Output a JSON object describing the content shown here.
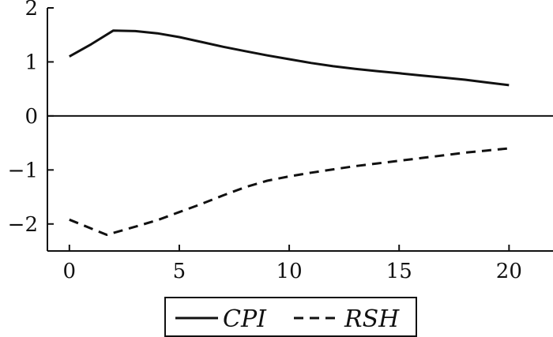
{
  "chart_data": {
    "type": "line",
    "title": "",
    "xlabel": "",
    "ylabel": "",
    "xlim": [
      -1,
      22
    ],
    "ylim": [
      -2.5,
      2
    ],
    "x_ticks": [
      0,
      5,
      10,
      15,
      20
    ],
    "y_ticks": [
      2,
      1,
      0,
      -1,
      -2
    ],
    "x_tick_labels": [
      "0",
      "5",
      "10",
      "15",
      "20"
    ],
    "y_tick_labels": [
      "2",
      "1",
      "0",
      "−1",
      "−2"
    ],
    "grid": false,
    "zero_line": true,
    "legend_position": "bottom-center",
    "series": [
      {
        "name": "CPI",
        "line_style": "solid",
        "color": "#111111",
        "x": [
          0,
          1,
          2,
          3,
          4,
          5,
          6,
          7,
          8,
          9,
          10,
          11,
          12,
          13,
          14,
          15,
          16,
          17,
          18,
          19,
          20
        ],
        "y": [
          1.1,
          1.33,
          1.58,
          1.57,
          1.53,
          1.46,
          1.37,
          1.28,
          1.2,
          1.12,
          1.05,
          0.98,
          0.92,
          0.87,
          0.83,
          0.79,
          0.75,
          0.71,
          0.67,
          0.62,
          0.57
        ]
      },
      {
        "name": "RSH",
        "line_style": "dashed",
        "color": "#111111",
        "x": [
          0,
          1.7,
          3,
          4,
          5,
          6,
          7,
          8,
          9,
          10,
          11,
          12,
          13,
          14,
          15,
          16,
          17,
          18,
          19,
          20
        ],
        "y": [
          -1.92,
          -2.2,
          -2.05,
          -1.93,
          -1.78,
          -1.63,
          -1.47,
          -1.32,
          -1.2,
          -1.12,
          -1.05,
          -0.99,
          -0.93,
          -0.88,
          -0.83,
          -0.78,
          -0.73,
          -0.68,
          -0.64,
          -0.6
        ]
      }
    ]
  }
}
